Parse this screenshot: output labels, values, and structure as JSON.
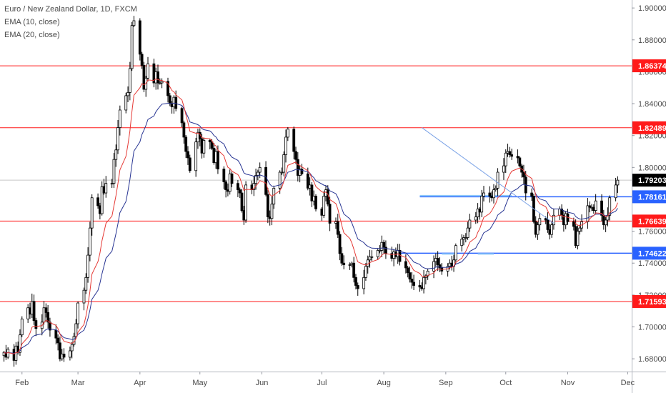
{
  "legend": {
    "symbol": "Euro / New Zealand Dollar, 1D, FXCM",
    "ema10": "EMA (10, close)",
    "ema20": "EMA (20, close)"
  },
  "colors": {
    "up": "#ffffff",
    "down": "#000000",
    "candle_border": "#000000",
    "ema10": "#e53935",
    "ema20": "#283593",
    "resistance_line": "#ff1a1a",
    "support_line": "#2962ff",
    "trendline": "#7aa2e6",
    "last_price": "#000000"
  },
  "chart_data": {
    "type": "candlestick",
    "instrument": "Euro / New Zealand Dollar",
    "timeframe": "1D",
    "source": "FXCM",
    "y_range": [
      1.672,
      1.905
    ],
    "x_range": [
      "2019-01-21",
      "2019-12-03"
    ],
    "y_ticks": [
      "1.68000",
      "1.70000",
      "1.72000",
      "1.74000",
      "1.76000",
      "1.78000",
      "1.80000",
      "1.82000",
      "1.84000",
      "1.86000",
      "1.88000",
      "1.90000"
    ],
    "x_ticks": [
      {
        "label": "Feb",
        "date": "2019-02-01"
      },
      {
        "label": "Mar",
        "date": "2019-03-01"
      },
      {
        "label": "Apr",
        "date": "2019-04-01"
      },
      {
        "label": "May",
        "date": "2019-05-01"
      },
      {
        "label": "Jun",
        "date": "2019-06-01"
      },
      {
        "label": "Jul",
        "date": "2019-07-01"
      },
      {
        "label": "Aug",
        "date": "2019-08-01"
      },
      {
        "label": "Sep",
        "date": "2019-09-01"
      },
      {
        "label": "Oct",
        "date": "2019-10-01"
      },
      {
        "label": "Nov",
        "date": "2019-11-01"
      },
      {
        "label": "Dec",
        "date": "2019-12-01"
      }
    ],
    "start_date": "2019-01-23",
    "closes": [
      1.684,
      1.681,
      1.686,
      1.679,
      1.688,
      1.684,
      1.695,
      1.705,
      1.712,
      1.708,
      1.716,
      1.704,
      1.699,
      1.703,
      1.712,
      1.709,
      1.703,
      1.698,
      1.693,
      1.69,
      1.68,
      1.683,
      1.681,
      1.685,
      1.689,
      1.694,
      1.702,
      1.715,
      1.723,
      1.731,
      1.745,
      1.762,
      1.781,
      1.776,
      1.771,
      1.788,
      1.784,
      1.79,
      1.79,
      1.805,
      1.811,
      1.825,
      1.836,
      1.845,
      1.847,
      1.862,
      1.889,
      1.892,
      1.871,
      1.864,
      1.849,
      1.856,
      1.865,
      1.853,
      1.86,
      1.853,
      1.853,
      1.854,
      1.845,
      1.84,
      1.838,
      1.844,
      1.837,
      1.828,
      1.819,
      1.81,
      1.806,
      1.798,
      1.816,
      1.822,
      1.818,
      1.809,
      1.817,
      1.816,
      1.812,
      1.803,
      1.81,
      1.799,
      1.791,
      1.786,
      1.785,
      1.796,
      1.79,
      1.786,
      1.784,
      1.773,
      1.767,
      1.789,
      1.786,
      1.79,
      1.795,
      1.797,
      1.8,
      1.783,
      1.769,
      1.768,
      1.777,
      1.787,
      1.797,
      1.797,
      1.808,
      1.819,
      1.824,
      1.81,
      1.805,
      1.795,
      1.799,
      1.796,
      1.787,
      1.789,
      1.779,
      1.782,
      1.774,
      1.77,
      1.782,
      1.786,
      1.777,
      1.765,
      1.766,
      1.758,
      1.746,
      1.74,
      1.739,
      1.739,
      1.74,
      1.731,
      1.726,
      1.724,
      1.731,
      1.738,
      1.742,
      1.744,
      1.744,
      1.748,
      1.748,
      1.753,
      1.75,
      1.746,
      1.743,
      1.747,
      1.744,
      1.748,
      1.741,
      1.737,
      1.734,
      1.73,
      1.728,
      1.726,
      1.725,
      1.724,
      1.731,
      1.732,
      1.735,
      1.741,
      1.743,
      1.739,
      1.737,
      1.735,
      1.738,
      1.74,
      1.738,
      1.742,
      1.751,
      1.755,
      1.756,
      1.756,
      1.762,
      1.767,
      1.769,
      1.774,
      1.772,
      1.782,
      1.784,
      1.782,
      1.781,
      1.786,
      1.787,
      1.797,
      1.801,
      1.809,
      1.81,
      1.808,
      1.807,
      1.806,
      1.801,
      1.797,
      1.794,
      1.784,
      1.782,
      1.766,
      1.758,
      1.764,
      1.768,
      1.767,
      1.761,
      1.758,
      1.764,
      1.77,
      1.774,
      1.77,
      1.764,
      1.771,
      1.766,
      1.763,
      1.751,
      1.76,
      1.762,
      1.766,
      1.776,
      1.775,
      1.775,
      1.773,
      1.779,
      1.77,
      1.764,
      1.767,
      1.77,
      1.781,
      1.789,
      1.792
    ],
    "ema_periods": [
      10,
      20
    ],
    "horizontal_levels": [
      {
        "value": 1.86374,
        "label": "1.86374",
        "kind": "resistance"
      },
      {
        "value": 1.82489,
        "label": "1.82489",
        "kind": "resistance"
      },
      {
        "value": 1.78161,
        "label": "1.78161",
        "kind": "zone"
      },
      {
        "value": 1.76639,
        "label": "1.76639",
        "kind": "resistance"
      },
      {
        "value": 1.74622,
        "label": "1.74622",
        "kind": "support"
      },
      {
        "value": 1.71593,
        "label": "1.71593",
        "kind": "resistance"
      }
    ],
    "last_price": {
      "value": 1.79203,
      "label": "1.79203"
    },
    "trendline": {
      "start": {
        "date": "2019-08-20",
        "value": 1.825
      },
      "end": {
        "date": "2019-10-25",
        "value": 1.765
      }
    }
  }
}
